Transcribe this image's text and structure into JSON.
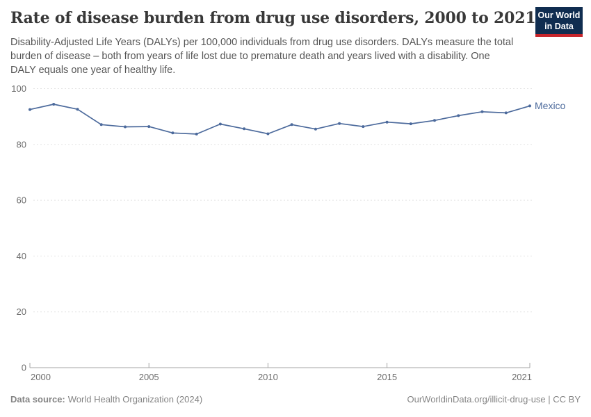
{
  "header": {
    "title": "Rate of disease burden from drug use disorders, 2000 to 2021",
    "subtitle": "Disability-Adjusted Life Years (DALYs) per 100,000 individuals from drug use disorders. DALYs measure the total burden of disease – both from years of life lost due to premature death and years lived with a disability. One DALY equals one year of healthy life."
  },
  "logo": {
    "line1": "Our World",
    "line2": "in Data",
    "bg_color": "#102d50",
    "stripe_color": "#c7252b"
  },
  "chart_data": {
    "type": "line",
    "title": "Rate of disease burden from drug use disorders, 2000 to 2021",
    "ylabel": "DALYs per 100,000 individuals",
    "x": [
      2000,
      2001,
      2002,
      2003,
      2004,
      2005,
      2006,
      2007,
      2008,
      2009,
      2010,
      2011,
      2012,
      2013,
      2014,
      2015,
      2016,
      2017,
      2018,
      2019,
      2020,
      2021
    ],
    "series": [
      {
        "name": "Mexico",
        "color": "#4c6a9c",
        "values": [
          92.5,
          94.4,
          92.6,
          87.1,
          86.3,
          86.4,
          84.1,
          83.7,
          87.3,
          85.6,
          83.8,
          87.1,
          85.5,
          87.5,
          86.4,
          88.0,
          87.4,
          88.6,
          90.3,
          91.7,
          91.3,
          93.8
        ]
      }
    ],
    "ylim": [
      0,
      100
    ],
    "yticks": [
      0,
      20,
      40,
      60,
      80,
      100
    ],
    "xticks": [
      2000,
      2005,
      2010,
      2015,
      2021
    ],
    "grid": "dashed-horizontal",
    "legend_position": "end-of-line-label"
  },
  "footer": {
    "datasource_label": "Data source:",
    "datasource_value": "World Health Organization (2024)",
    "credit": "OurWorldinData.org/illicit-drug-use | CC BY"
  },
  "colors": {
    "line": "#4c6a9c",
    "grid": "#e4e4e4",
    "axis": "#a5a5a5",
    "tick_label": "#6e6e6e",
    "title_text": "#383838",
    "subtitle_text": "#555555",
    "footer_text": "#858585"
  }
}
